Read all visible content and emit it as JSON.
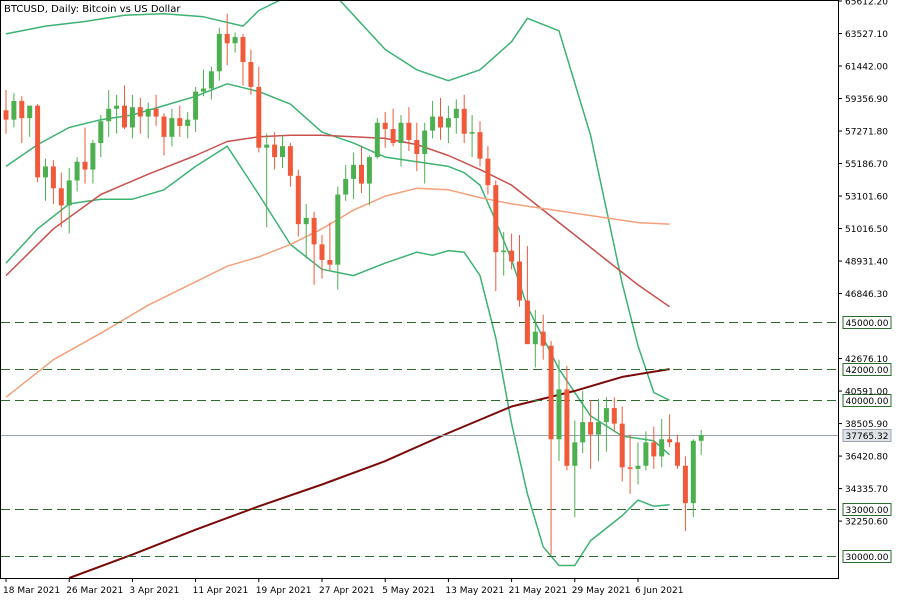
{
  "chart_data": {
    "type": "candlestick",
    "title": "BTCUSD, Daily:  Bitcoin vs US Dollar",
    "y_range": [
      28600,
      65612.2
    ],
    "grid": false,
    "colors": {
      "bull": "#4caf50",
      "bear": "#f05a3a",
      "bollinger": "#3cb371",
      "ma_mid": "#c8504e",
      "ma_slow": "#f4a07a",
      "ma_200": "#7a0a0a",
      "level_line": "#2e6b2e",
      "price_line": "#9aa4ae",
      "axis": "#000000"
    },
    "y_tick_labels": [
      "65612.20",
      "63527.10",
      "61442.00",
      "59356.90",
      "57271.80",
      "55186.70",
      "53101.60",
      "51016.50",
      "48931.40",
      "46846.30",
      "42676.10",
      "40591.00",
      "38505.90",
      "36420.80",
      "34335.70",
      "32250.60"
    ],
    "x_tick_labels": [
      {
        "label": "18 Mar 2021",
        "index": 0
      },
      {
        "label": "26 Mar 2021",
        "index": 8
      },
      {
        "label": "3 Apr 2021",
        "index": 16
      },
      {
        "label": "11 Apr 2021",
        "index": 24
      },
      {
        "label": "19 Apr 2021",
        "index": 32
      },
      {
        "label": "27 Apr 2021",
        "index": 40
      },
      {
        "label": "5 May 2021",
        "index": 48
      },
      {
        "label": "13 May 2021",
        "index": 56
      },
      {
        "label": "21 May 2021",
        "index": 64
      },
      {
        "label": "29 May 2021",
        "index": 72
      },
      {
        "label": "6 Jun 2021",
        "index": 80
      }
    ],
    "levels": [
      {
        "value": 45000,
        "label": "45000.00"
      },
      {
        "value": 42000,
        "label": "42000.00"
      },
      {
        "value": 40000,
        "label": "40000.00"
      },
      {
        "value": 33000,
        "label": "33000.00"
      },
      {
        "value": 30000,
        "label": "30000.00"
      }
    ],
    "current_price": {
      "value": 37765.32,
      "label": "37765.32"
    },
    "candles": [
      {
        "o": 58600,
        "h": 59900,
        "l": 57100,
        "c": 58000
      },
      {
        "o": 58000,
        "h": 59700,
        "l": 57500,
        "c": 59200
      },
      {
        "o": 59200,
        "h": 59500,
        "l": 56500,
        "c": 58100
      },
      {
        "o": 58100,
        "h": 58700,
        "l": 56900,
        "c": 58900
      },
      {
        "o": 58900,
        "h": 59000,
        "l": 54000,
        "c": 54300
      },
      {
        "o": 54300,
        "h": 55500,
        "l": 52800,
        "c": 55000
      },
      {
        "o": 55000,
        "h": 55400,
        "l": 52600,
        "c": 53600
      },
      {
        "o": 53600,
        "h": 54600,
        "l": 51100,
        "c": 52500
      },
      {
        "o": 52500,
        "h": 54900,
        "l": 50700,
        "c": 54100
      },
      {
        "o": 54100,
        "h": 55600,
        "l": 53400,
        "c": 55300
      },
      {
        "o": 55300,
        "h": 57500,
        "l": 53900,
        "c": 54800
      },
      {
        "o": 54800,
        "h": 56700,
        "l": 53900,
        "c": 56500
      },
      {
        "o": 56500,
        "h": 58300,
        "l": 55600,
        "c": 57900
      },
      {
        "o": 57900,
        "h": 59900,
        "l": 56900,
        "c": 58700
      },
      {
        "o": 58700,
        "h": 59600,
        "l": 57100,
        "c": 58900
      },
      {
        "o": 58900,
        "h": 60200,
        "l": 57400,
        "c": 57500
      },
      {
        "o": 57500,
        "h": 59600,
        "l": 56800,
        "c": 58800
      },
      {
        "o": 58800,
        "h": 59400,
        "l": 57100,
        "c": 58200
      },
      {
        "o": 58200,
        "h": 59100,
        "l": 56800,
        "c": 58700
      },
      {
        "o": 58700,
        "h": 59600,
        "l": 57600,
        "c": 58200
      },
      {
        "o": 58200,
        "h": 58400,
        "l": 55700,
        "c": 56900
      },
      {
        "o": 56900,
        "h": 58700,
        "l": 56300,
        "c": 58100
      },
      {
        "o": 58100,
        "h": 58900,
        "l": 56900,
        "c": 57600
      },
      {
        "o": 57600,
        "h": 58500,
        "l": 56800,
        "c": 58000
      },
      {
        "o": 58000,
        "h": 60100,
        "l": 57200,
        "c": 59800
      },
      {
        "o": 59800,
        "h": 61200,
        "l": 59500,
        "c": 60000
      },
      {
        "o": 60000,
        "h": 61400,
        "l": 59300,
        "c": 61100
      },
      {
        "o": 61100,
        "h": 63900,
        "l": 60500,
        "c": 63500
      },
      {
        "o": 63500,
        "h": 64800,
        "l": 61500,
        "c": 62900
      },
      {
        "o": 62900,
        "h": 63600,
        "l": 62300,
        "c": 63300
      },
      {
        "o": 63300,
        "h": 63500,
        "l": 60200,
        "c": 61700
      },
      {
        "o": 61700,
        "h": 62500,
        "l": 59600,
        "c": 60100
      },
      {
        "o": 60100,
        "h": 61400,
        "l": 55900,
        "c": 56200
      },
      {
        "o": 56200,
        "h": 57100,
        "l": 51100,
        "c": 56400
      },
      {
        "o": 56400,
        "h": 57200,
        "l": 54800,
        "c": 55600
      },
      {
        "o": 55600,
        "h": 57000,
        "l": 54900,
        "c": 56300
      },
      {
        "o": 56300,
        "h": 56500,
        "l": 53700,
        "c": 54400
      },
      {
        "o": 54400,
        "h": 54800,
        "l": 50500,
        "c": 51300
      },
      {
        "o": 51300,
        "h": 52600,
        "l": 49100,
        "c": 51700
      },
      {
        "o": 51700,
        "h": 52100,
        "l": 47400,
        "c": 50000
      },
      {
        "o": 50000,
        "h": 50600,
        "l": 47800,
        "c": 49000
      },
      {
        "o": 49000,
        "h": 51400,
        "l": 48300,
        "c": 48700
      },
      {
        "o": 48700,
        "h": 53700,
        "l": 47100,
        "c": 53200
      },
      {
        "o": 53200,
        "h": 55100,
        "l": 52800,
        "c": 54200
      },
      {
        "o": 54200,
        "h": 55900,
        "l": 52900,
        "c": 55100
      },
      {
        "o": 55100,
        "h": 56300,
        "l": 53300,
        "c": 53900
      },
      {
        "o": 53900,
        "h": 55700,
        "l": 52500,
        "c": 55600
      },
      {
        "o": 55600,
        "h": 58100,
        "l": 55500,
        "c": 57800
      },
      {
        "o": 57800,
        "h": 58500,
        "l": 56200,
        "c": 57400
      },
      {
        "o": 57400,
        "h": 58700,
        "l": 56300,
        "c": 56500
      },
      {
        "o": 56500,
        "h": 58300,
        "l": 55000,
        "c": 57800
      },
      {
        "o": 57800,
        "h": 58800,
        "l": 56000,
        "c": 56700
      },
      {
        "o": 56700,
        "h": 57800,
        "l": 54700,
        "c": 55800
      },
      {
        "o": 55800,
        "h": 57800,
        "l": 53900,
        "c": 57300
      },
      {
        "o": 57300,
        "h": 59200,
        "l": 56800,
        "c": 58200
      },
      {
        "o": 58200,
        "h": 59400,
        "l": 56700,
        "c": 57500
      },
      {
        "o": 57500,
        "h": 58900,
        "l": 56500,
        "c": 58100
      },
      {
        "o": 58100,
        "h": 59300,
        "l": 57100,
        "c": 58700
      },
      {
        "o": 58700,
        "h": 59600,
        "l": 56500,
        "c": 57100
      },
      {
        "o": 57100,
        "h": 58300,
        "l": 55600,
        "c": 57200
      },
      {
        "o": 57200,
        "h": 57900,
        "l": 55000,
        "c": 55500
      },
      {
        "o": 55500,
        "h": 56300,
        "l": 53200,
        "c": 53800
      },
      {
        "o": 53800,
        "h": 54100,
        "l": 47000,
        "c": 49500
      },
      {
        "o": 49500,
        "h": 50800,
        "l": 48000,
        "c": 49600
      },
      {
        "o": 49600,
        "h": 50700,
        "l": 48400,
        "c": 48900
      },
      {
        "o": 48900,
        "h": 50600,
        "l": 46000,
        "c": 46400
      },
      {
        "o": 46400,
        "h": 49900,
        "l": 43800,
        "c": 43600
      },
      {
        "o": 43600,
        "h": 45800,
        "l": 42100,
        "c": 44400
      },
      {
        "o": 44400,
        "h": 45500,
        "l": 42600,
        "c": 43500
      },
      {
        "o": 43500,
        "h": 43800,
        "l": 30100,
        "c": 37500
      },
      {
        "o": 37500,
        "h": 42600,
        "l": 36100,
        "c": 40700
      },
      {
        "o": 40700,
        "h": 42200,
        "l": 35500,
        "c": 35800
      },
      {
        "o": 35800,
        "h": 38700,
        "l": 32500,
        "c": 37300
      },
      {
        "o": 37300,
        "h": 40600,
        "l": 36600,
        "c": 38600
      },
      {
        "o": 38600,
        "h": 40000,
        "l": 35600,
        "c": 37800
      },
      {
        "o": 37800,
        "h": 40100,
        "l": 36100,
        "c": 38600
      },
      {
        "o": 38600,
        "h": 40200,
        "l": 36700,
        "c": 39500
      },
      {
        "o": 39500,
        "h": 40200,
        "l": 38000,
        "c": 38500
      },
      {
        "o": 38500,
        "h": 39600,
        "l": 34800,
        "c": 35700
      },
      {
        "o": 35700,
        "h": 37800,
        "l": 34000,
        "c": 35600
      },
      {
        "o": 35600,
        "h": 37300,
        "l": 34600,
        "c": 35800
      },
      {
        "o": 35800,
        "h": 38000,
        "l": 35500,
        "c": 37300
      },
      {
        "o": 37300,
        "h": 38300,
        "l": 35600,
        "c": 36400
      },
      {
        "o": 36400,
        "h": 38800,
        "l": 35700,
        "c": 37500
      },
      {
        "o": 37500,
        "h": 39100,
        "l": 37000,
        "c": 37300
      },
      {
        "o": 37300,
        "h": 37800,
        "l": 35600,
        "c": 35800
      },
      {
        "o": 35800,
        "h": 36400,
        "l": 31600,
        "c": 33400
      },
      {
        "o": 33400,
        "h": 37500,
        "l": 32500,
        "c": 37400
      },
      {
        "o": 37400,
        "h": 38100,
        "l": 36500,
        "c": 37765
      }
    ],
    "indicators": {
      "bb_upper": [
        [
          0,
          63500
        ],
        [
          5,
          64000
        ],
        [
          10,
          64300
        ],
        [
          15,
          64700
        ],
        [
          20,
          64800
        ],
        [
          25,
          64600
        ],
        [
          30,
          64000
        ],
        [
          32,
          65000
        ],
        [
          36,
          66000
        ],
        [
          42,
          65800
        ],
        [
          48,
          62500
        ],
        [
          52,
          61200
        ],
        [
          56,
          60500
        ],
        [
          60,
          61200
        ],
        [
          64,
          63000
        ],
        [
          66,
          64500
        ],
        [
          70,
          63700
        ],
        [
          74,
          57000
        ],
        [
          78,
          47500
        ],
        [
          80,
          43500
        ],
        [
          82,
          40500
        ],
        [
          84,
          40000
        ]
      ],
      "bb_mid": [
        [
          0,
          55000
        ],
        [
          4,
          56400
        ],
        [
          8,
          57500
        ],
        [
          12,
          58000
        ],
        [
          16,
          58300
        ],
        [
          20,
          58900
        ],
        [
          24,
          59500
        ],
        [
          28,
          60300
        ],
        [
          32,
          59800
        ],
        [
          36,
          59000
        ],
        [
          40,
          57200
        ],
        [
          44,
          56500
        ],
        [
          48,
          55600
        ],
        [
          52,
          55300
        ],
        [
          56,
          55000
        ],
        [
          58,
          54600
        ],
        [
          60,
          53800
        ],
        [
          62,
          51500
        ],
        [
          64,
          49000
        ],
        [
          66,
          46000
        ],
        [
          70,
          42000
        ],
        [
          74,
          39000
        ],
        [
          78,
          37700
        ],
        [
          82,
          37400
        ],
        [
          84,
          36500
        ]
      ],
      "bb_lower": [
        [
          0,
          48800
        ],
        [
          4,
          51000
        ],
        [
          8,
          52600
        ],
        [
          12,
          52900
        ],
        [
          16,
          52900
        ],
        [
          20,
          53500
        ],
        [
          24,
          55000
        ],
        [
          28,
          56300
        ],
        [
          32,
          53200
        ],
        [
          36,
          50000
        ],
        [
          40,
          48400
        ],
        [
          44,
          48000
        ],
        [
          48,
          48800
        ],
        [
          52,
          49500
        ],
        [
          54,
          49300
        ],
        [
          56,
          49600
        ],
        [
          58,
          49500
        ],
        [
          60,
          48000
        ],
        [
          62,
          44000
        ],
        [
          64,
          38500
        ],
        [
          66,
          34000
        ],
        [
          68,
          30600
        ],
        [
          70,
          29400
        ],
        [
          72,
          29400
        ],
        [
          74,
          31000
        ],
        [
          76,
          31800
        ],
        [
          78,
          32600
        ],
        [
          80,
          33600
        ],
        [
          82,
          33200
        ],
        [
          84,
          33300
        ]
      ],
      "ma_mid": [
        [
          0,
          48000
        ],
        [
          6,
          51000
        ],
        [
          12,
          53200
        ],
        [
          18,
          54500
        ],
        [
          24,
          55700
        ],
        [
          28,
          56600
        ],
        [
          32,
          56900
        ],
        [
          36,
          57000
        ],
        [
          40,
          57000
        ],
        [
          44,
          56900
        ],
        [
          48,
          56800
        ],
        [
          52,
          56400
        ],
        [
          56,
          55700
        ],
        [
          60,
          54800
        ],
        [
          64,
          53800
        ],
        [
          68,
          52200
        ],
        [
          72,
          50600
        ],
        [
          76,
          49000
        ],
        [
          80,
          47400
        ],
        [
          84,
          46000
        ]
      ],
      "ma_slow": [
        [
          0,
          40200
        ],
        [
          6,
          42600
        ],
        [
          12,
          44300
        ],
        [
          18,
          46100
        ],
        [
          24,
          47600
        ],
        [
          28,
          48600
        ],
        [
          32,
          49200
        ],
        [
          36,
          50000
        ],
        [
          40,
          51000
        ],
        [
          44,
          52200
        ],
        [
          48,
          53100
        ],
        [
          52,
          53600
        ],
        [
          56,
          53500
        ],
        [
          60,
          53000
        ],
        [
          64,
          52600
        ],
        [
          68,
          52300
        ],
        [
          72,
          52000
        ],
        [
          76,
          51700
        ],
        [
          80,
          51400
        ],
        [
          84,
          51300
        ]
      ],
      "ma_200": [
        [
          8,
          28600
        ],
        [
          16,
          30100
        ],
        [
          24,
          31700
        ],
        [
          32,
          33200
        ],
        [
          40,
          34600
        ],
        [
          48,
          36100
        ],
        [
          56,
          37900
        ],
        [
          64,
          39600
        ],
        [
          72,
          40600
        ],
        [
          78,
          41500
        ],
        [
          84,
          42000
        ]
      ]
    }
  }
}
